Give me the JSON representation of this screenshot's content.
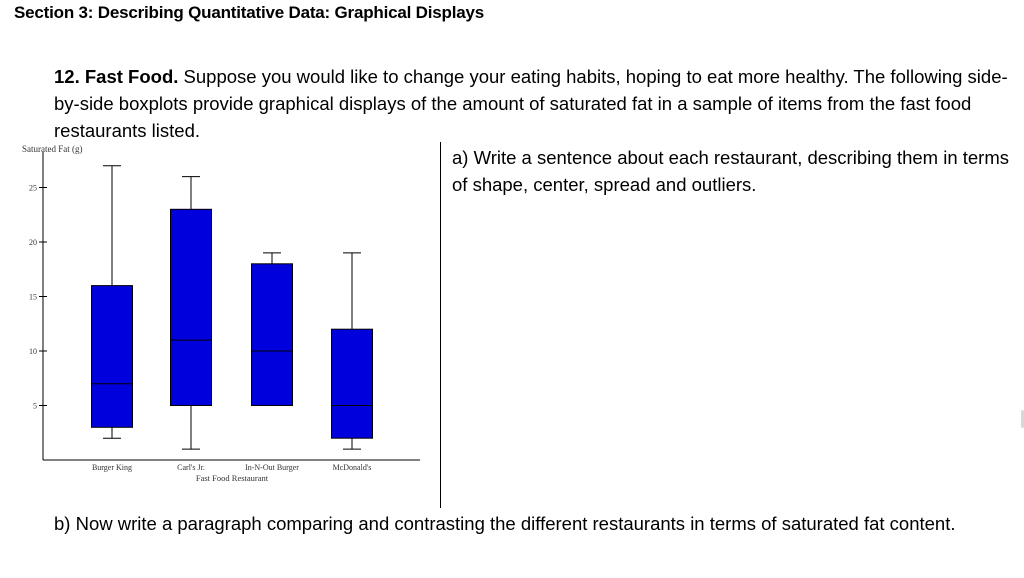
{
  "section": {
    "title": "Section 3: Describing Quantitative Data: Graphical Displays"
  },
  "question": {
    "number": "12. Fast Food.",
    "text": "Suppose you would like to change your eating habits, hoping to eat more healthy. The following side-by-side boxplots provide graphical displays of the amount of saturated fat in a sample of items from the fast food restaurants listed."
  },
  "part_a": {
    "text": "a) Write a sentence about each restaurant, describing them in terms of shape, center, spread and outliers."
  },
  "part_b": {
    "text": "b) Now write a paragraph comparing and contrasting the different restaurants in terms of saturated fat content."
  },
  "chart_data": {
    "type": "boxplot",
    "ylabel": "Saturated Fat (g)",
    "xlabel": "Fast Food Restaurant",
    "ylim": [
      0,
      28
    ],
    "yticks": [
      5,
      10,
      15,
      20,
      25
    ],
    "grid": false,
    "colors": {
      "box": "#0000dd",
      "stroke": "#000000"
    },
    "categories": [
      "Burger King",
      "Carl's Jr.",
      "In-N-Out Burger",
      "McDonald's"
    ],
    "boxes": [
      {
        "min": 2,
        "q1": 3,
        "median": 7,
        "q3": 16,
        "max": 27
      },
      {
        "min": 1,
        "q1": 5,
        "median": 11,
        "q3": 23,
        "max": 26
      },
      {
        "min": 5,
        "q1": 5,
        "median": 10,
        "q3": 18,
        "max": 19
      },
      {
        "min": 1,
        "q1": 2,
        "median": 5,
        "q3": 12,
        "max": 19
      }
    ]
  }
}
